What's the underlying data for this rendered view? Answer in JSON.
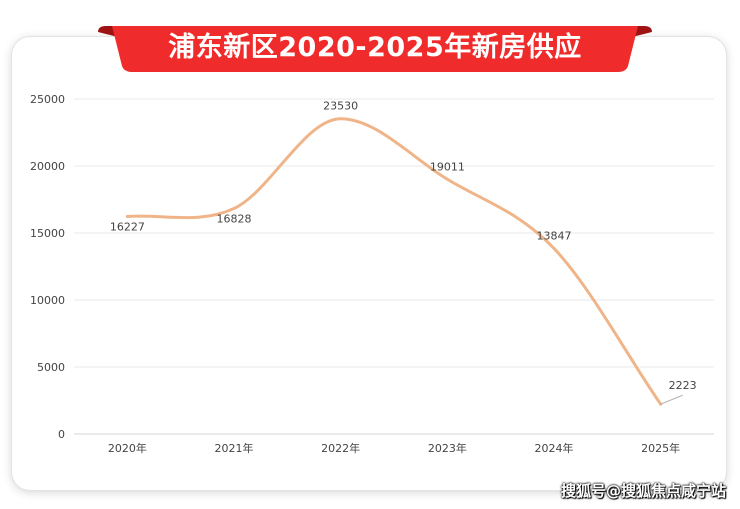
{
  "title": "浦东新区2020-2025年新房供应",
  "watermark": "搜狐号@搜狐焦点咸宁站",
  "colors": {
    "banner": "#f02b2b",
    "banner_dark": "#b51313",
    "line": "#f0b489",
    "grid": "#e9e9e9",
    "text": "#444444"
  },
  "chart_data": {
    "type": "line",
    "title": "浦东新区2020-2025年新房供应",
    "xlabel": "",
    "ylabel": "",
    "categories": [
      "2020年",
      "2021年",
      "2022年",
      "2023年",
      "2024年",
      "2025年"
    ],
    "series": [
      {
        "values": [
          16227,
          16828,
          23530,
          19011,
          13847,
          2223
        ]
      }
    ],
    "ylim": [
      0,
      25000
    ],
    "yticks": [
      "0",
      "5000",
      "10000",
      "15000",
      "20000",
      "25000"
    ],
    "data_labels": [
      "16227",
      "16828",
      "23530",
      "19011",
      "13847",
      "2223"
    ],
    "smooth": true,
    "grid": true,
    "legend": "none"
  }
}
